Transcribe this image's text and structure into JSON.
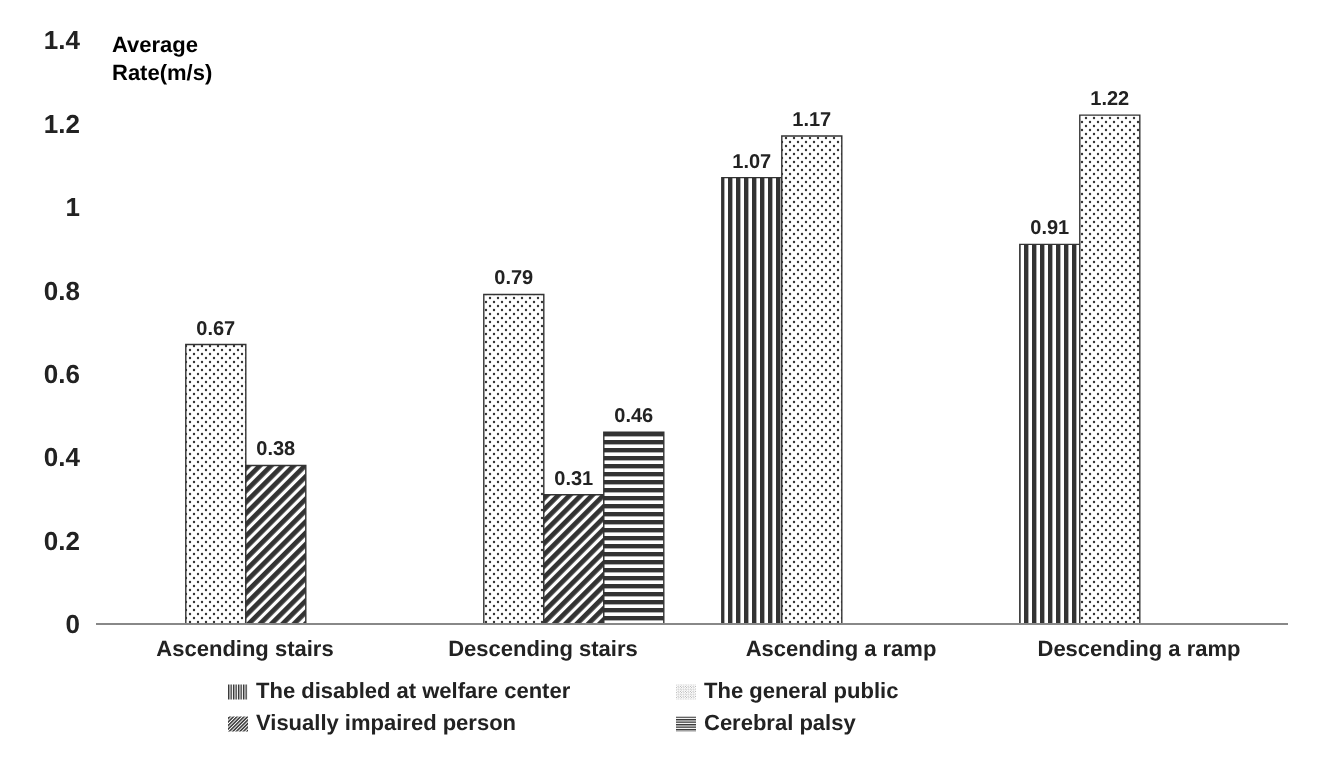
{
  "chart_data": {
    "type": "bar",
    "ylabel": "Average Rate(m/s)",
    "categories": [
      "Ascending stairs",
      "Descending stairs",
      "Ascending a ramp",
      "Descending a ramp"
    ],
    "series": [
      {
        "name": "The disabled at welfare center",
        "color": "#333333",
        "values": [
          null,
          null,
          1.07,
          0.91
        ]
      },
      {
        "name": "The general public",
        "color": "#333333",
        "values": [
          0.67,
          0.79,
          1.17,
          1.22
        ]
      },
      {
        "name": "Visually impaired person",
        "color": "#333333",
        "values": [
          0.38,
          0.31,
          null,
          null
        ]
      },
      {
        "name": "Cerebral palsy",
        "color": "#333333",
        "values": [
          null,
          0.46,
          null,
          null
        ]
      }
    ],
    "ylim": [
      0,
      1.4
    ],
    "yticks": [
      0,
      0.2,
      0.4,
      0.6,
      0.8,
      1,
      1.2,
      1.4
    ],
    "grid": false,
    "legend": "bottom",
    "data_labels": true
  }
}
